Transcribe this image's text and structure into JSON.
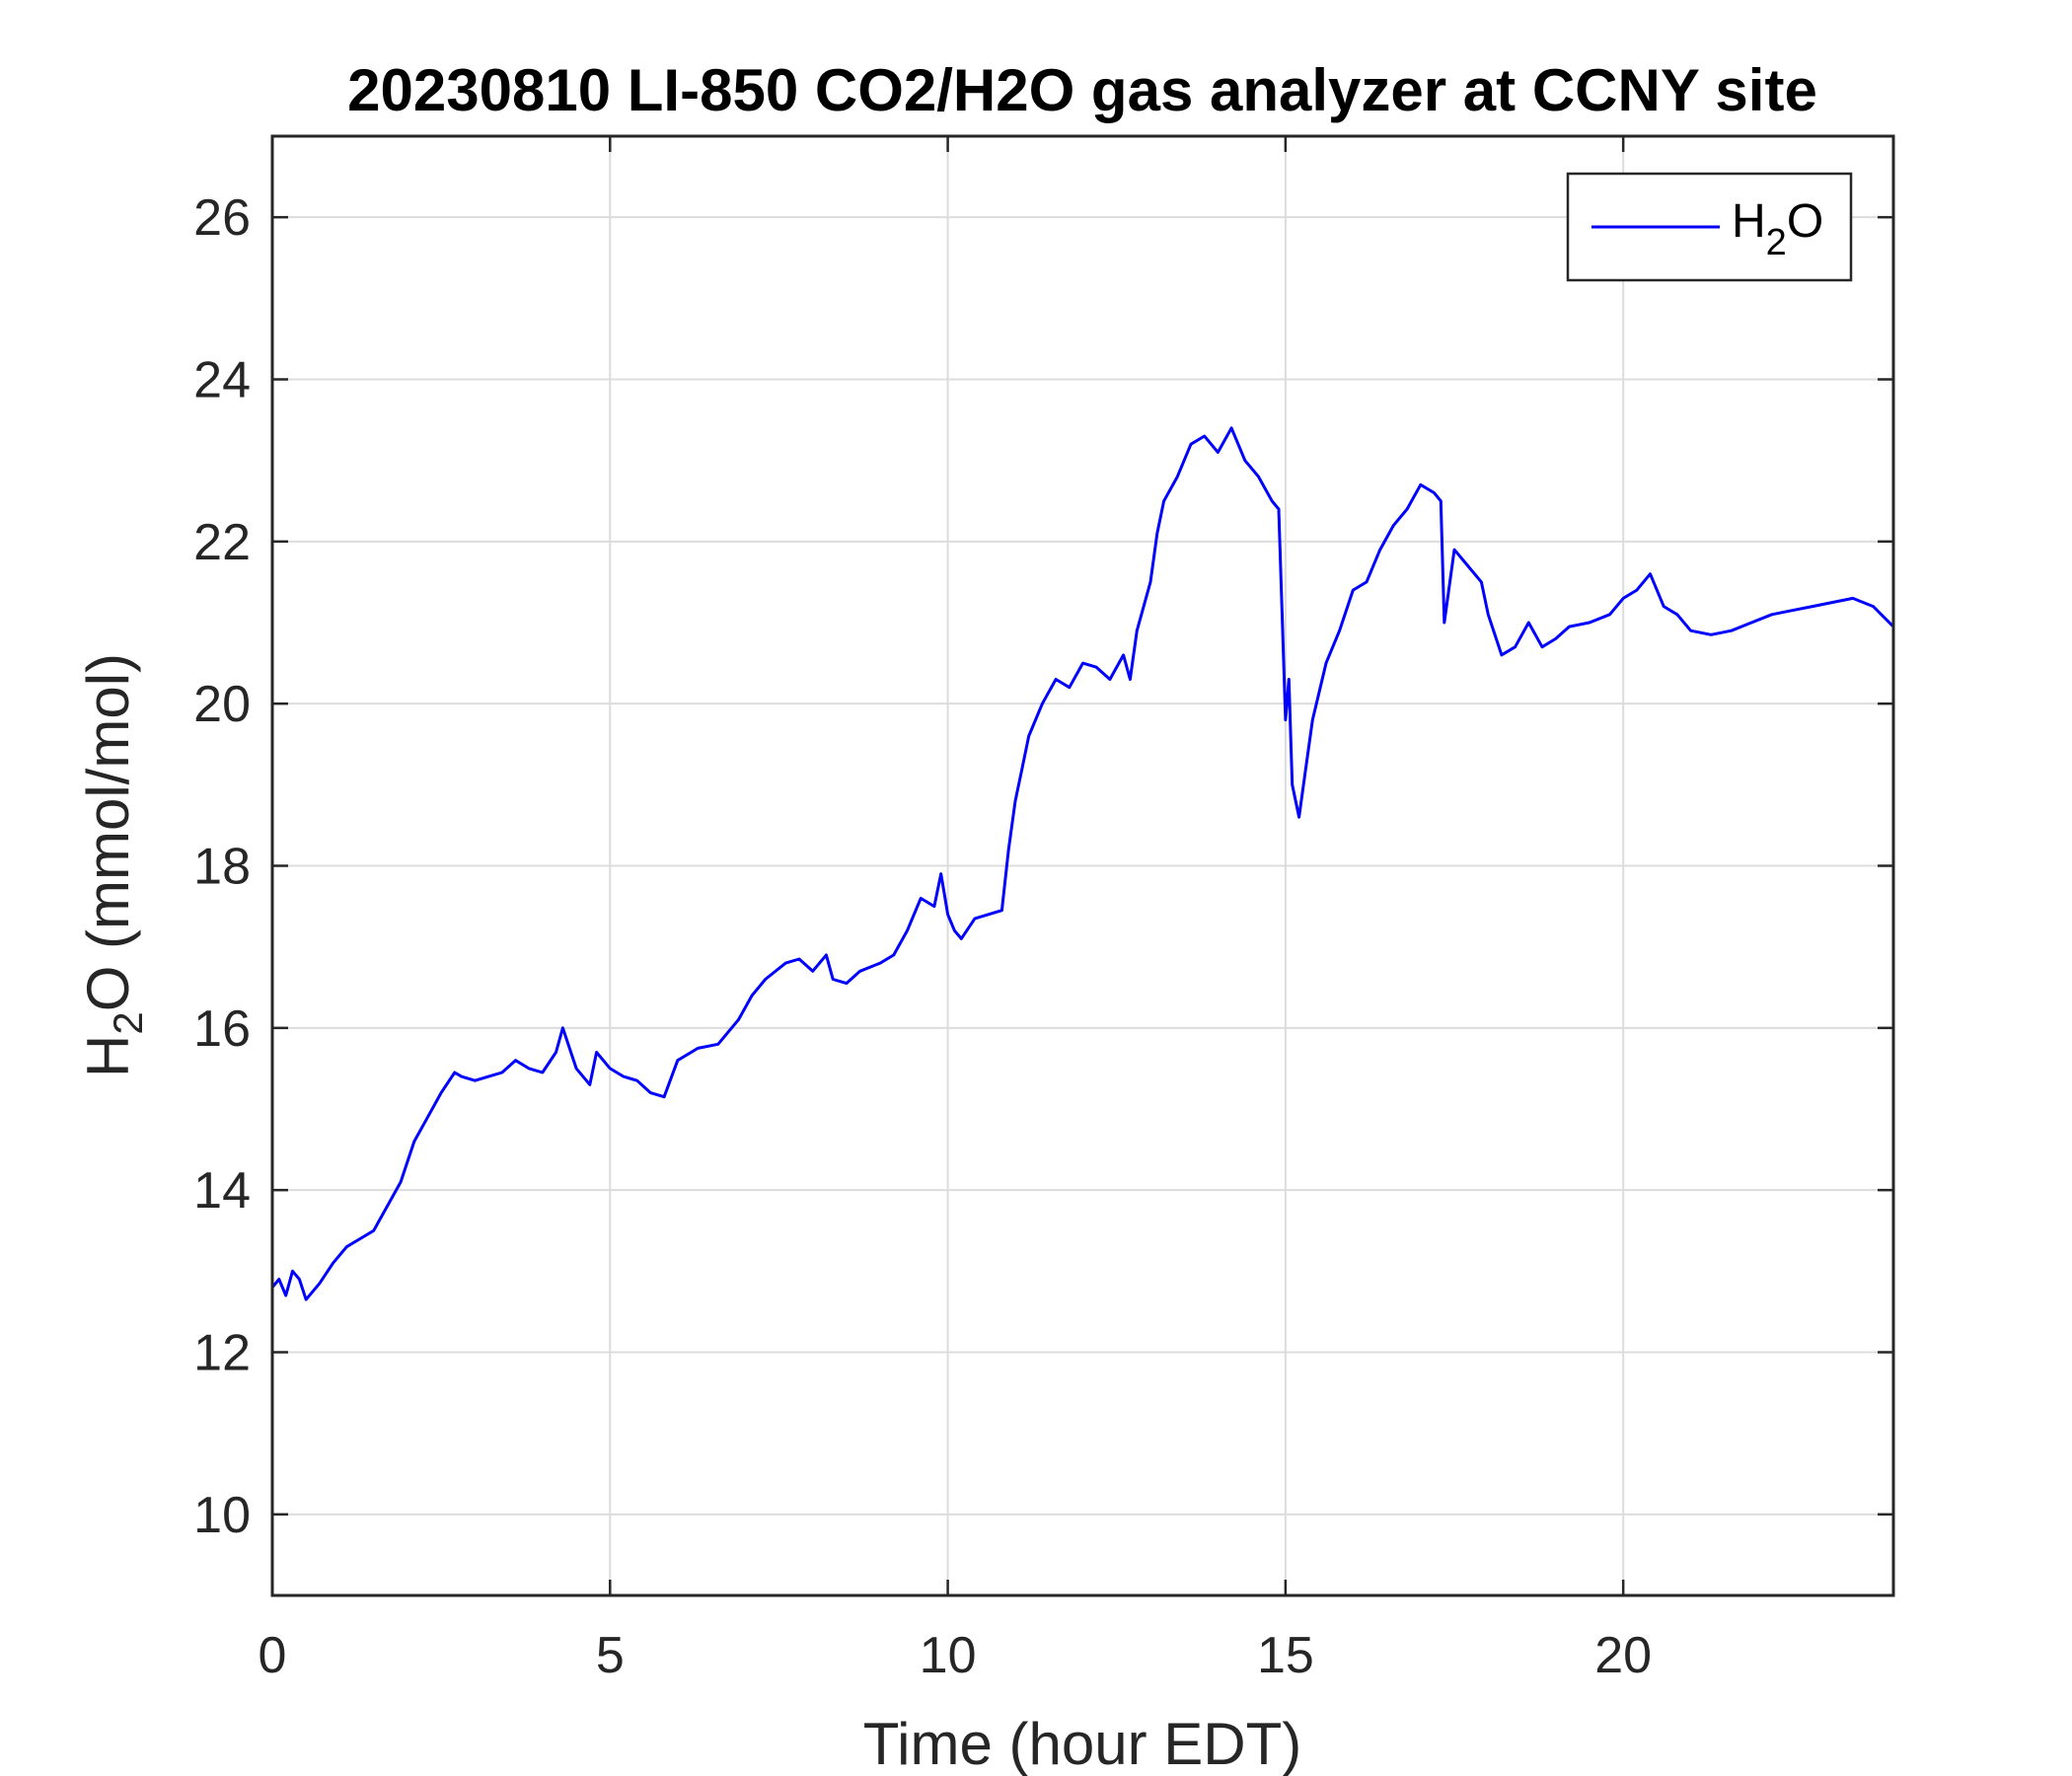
{
  "chart_data": {
    "type": "line",
    "title": "20230810 LI-850 CO2/H2O gas analyzer at CCNY site",
    "xlabel": "Time (hour EDT)",
    "ylabel": {
      "base": "H",
      "sub": "2",
      "rest": "O (mmol/mol)"
    },
    "xlim": [
      0,
      24
    ],
    "ylim": [
      9,
      27
    ],
    "xticks": [
      0,
      5,
      10,
      15,
      20
    ],
    "yticks": [
      10,
      12,
      14,
      16,
      18,
      20,
      22,
      24,
      26
    ],
    "grid": true,
    "legend_position": "top-right",
    "series": [
      {
        "name": {
          "base": "H",
          "sub": "2",
          "rest": "O"
        },
        "color": "#0000ff",
        "x": [
          0.0,
          0.1,
          0.2,
          0.3,
          0.4,
          0.5,
          0.7,
          0.9,
          1.1,
          1.3,
          1.5,
          1.7,
          1.9,
          2.1,
          2.3,
          2.5,
          2.7,
          2.8,
          3.0,
          3.2,
          3.4,
          3.6,
          3.8,
          4.0,
          4.2,
          4.3,
          4.5,
          4.7,
          4.8,
          5.0,
          5.2,
          5.4,
          5.6,
          5.8,
          6.0,
          6.3,
          6.6,
          6.9,
          7.1,
          7.3,
          7.6,
          7.8,
          8.0,
          8.2,
          8.3,
          8.5,
          8.7,
          9.0,
          9.2,
          9.4,
          9.6,
          9.8,
          9.9,
          10.0,
          10.1,
          10.2,
          10.4,
          10.6,
          10.8,
          10.9,
          11.0,
          11.1,
          11.2,
          11.4,
          11.6,
          11.8,
          12.0,
          12.2,
          12.4,
          12.6,
          12.7,
          12.8,
          13.0,
          13.1,
          13.2,
          13.4,
          13.6,
          13.8,
          14.0,
          14.2,
          14.4,
          14.6,
          14.8,
          14.9,
          15.0,
          15.05,
          15.1,
          15.2,
          15.3,
          15.4,
          15.6,
          15.8,
          16.0,
          16.2,
          16.4,
          16.6,
          16.8,
          17.0,
          17.2,
          17.3,
          17.35,
          17.5,
          17.7,
          17.9,
          18.0,
          18.2,
          18.4,
          18.6,
          18.8,
          19.0,
          19.2,
          19.5,
          19.8,
          20.0,
          20.2,
          20.4,
          20.6,
          20.8,
          21.0,
          21.3,
          21.6,
          21.9,
          22.2,
          22.5,
          22.8,
          23.1,
          23.4,
          23.7,
          24.0
        ],
        "y": [
          12.8,
          12.9,
          12.7,
          13.0,
          12.9,
          12.65,
          12.85,
          13.1,
          13.3,
          13.4,
          13.5,
          13.8,
          14.1,
          14.6,
          14.9,
          15.2,
          15.45,
          15.4,
          15.35,
          15.4,
          15.45,
          15.6,
          15.5,
          15.45,
          15.7,
          16.0,
          15.5,
          15.3,
          15.7,
          15.5,
          15.4,
          15.35,
          15.2,
          15.15,
          15.6,
          15.75,
          15.8,
          16.1,
          16.4,
          16.6,
          16.8,
          16.85,
          16.7,
          16.9,
          16.6,
          16.55,
          16.7,
          16.8,
          16.9,
          17.2,
          17.6,
          17.5,
          17.9,
          17.4,
          17.2,
          17.1,
          17.35,
          17.4,
          17.45,
          18.2,
          18.8,
          19.2,
          19.6,
          20.0,
          20.3,
          20.2,
          20.5,
          20.45,
          20.3,
          20.6,
          20.3,
          20.9,
          21.5,
          22.1,
          22.5,
          22.8,
          23.2,
          23.3,
          23.1,
          23.4,
          23.0,
          22.8,
          22.5,
          22.4,
          19.8,
          20.3,
          19.0,
          18.6,
          19.2,
          19.8,
          20.5,
          20.9,
          21.4,
          21.5,
          21.9,
          22.2,
          22.4,
          22.7,
          22.6,
          22.5,
          21.0,
          21.9,
          21.7,
          21.5,
          21.1,
          20.6,
          20.7,
          21.0,
          20.7,
          20.8,
          20.95,
          21.0,
          21.1,
          21.3,
          21.4,
          21.6,
          21.2,
          21.1,
          20.9,
          20.85,
          20.9,
          21.0,
          21.1,
          21.15,
          21.2,
          21.25,
          21.3,
          21.2,
          20.95
        ]
      }
    ]
  }
}
